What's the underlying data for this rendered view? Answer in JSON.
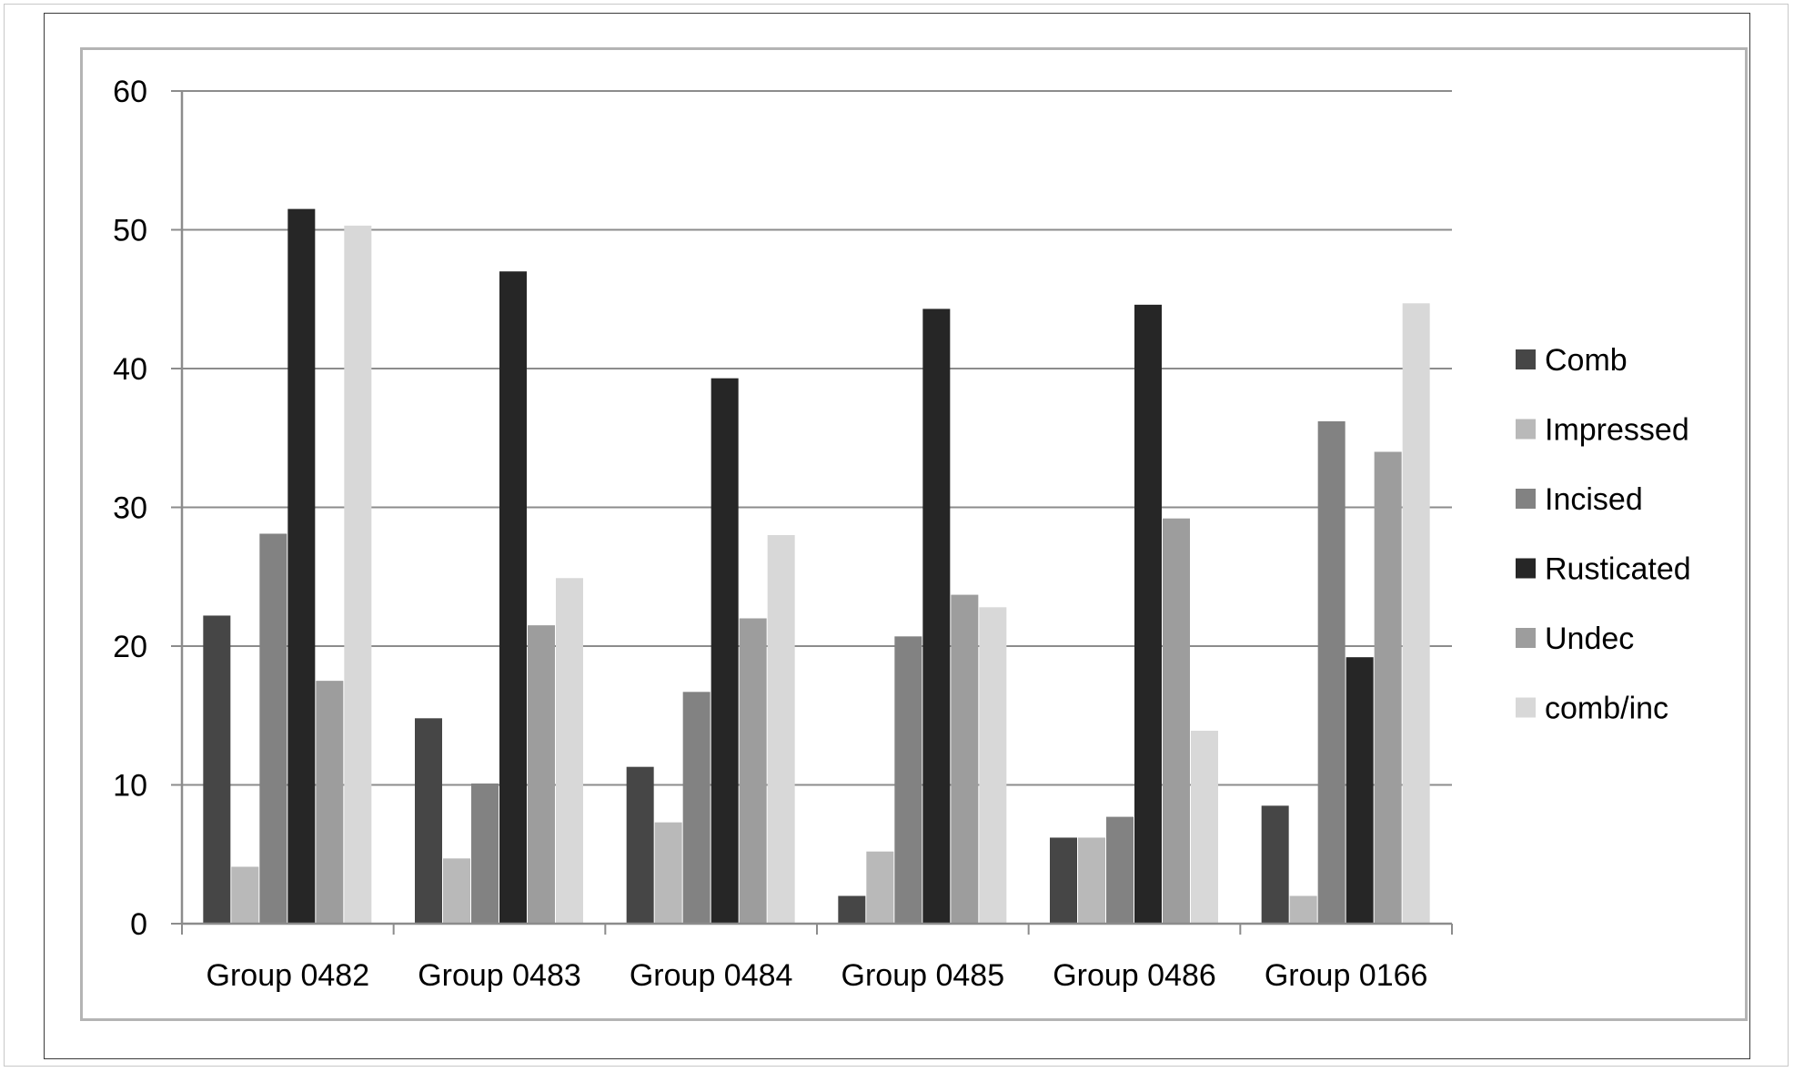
{
  "chart_data": {
    "type": "bar",
    "title": "",
    "xlabel": "",
    "ylabel": "",
    "ylim": [
      0,
      60
    ],
    "yticks": [
      0,
      10,
      20,
      30,
      40,
      50,
      60
    ],
    "grid": true,
    "legend": "right",
    "categories": [
      "Group 0482",
      "Group 0483",
      "Group 0484",
      "Group 0485",
      "Group 0486",
      "Group 0166"
    ],
    "series": [
      {
        "name": "Comb",
        "color": "#464646",
        "values": [
          22.2,
          14.8,
          11.3,
          2.0,
          6.2,
          8.5
        ]
      },
      {
        "name": "Impressed",
        "color": "#b9b9b9",
        "values": [
          4.1,
          4.7,
          7.3,
          5.2,
          6.2,
          2.0
        ]
      },
      {
        "name": "Incised",
        "color": "#828282",
        "values": [
          28.1,
          10.1,
          16.7,
          20.7,
          7.7,
          36.2
        ]
      },
      {
        "name": "Rusticated",
        "color": "#262626",
        "values": [
          51.5,
          47.0,
          39.3,
          44.3,
          44.6,
          19.2
        ]
      },
      {
        "name": "Undec",
        "color": "#9d9d9d",
        "values": [
          17.5,
          21.5,
          22.0,
          23.7,
          29.2,
          34.0
        ]
      },
      {
        "name": "comb/inc",
        "color": "#d8d8d8",
        "values": [
          50.3,
          24.9,
          28.0,
          22.8,
          13.9,
          44.7
        ]
      }
    ]
  }
}
